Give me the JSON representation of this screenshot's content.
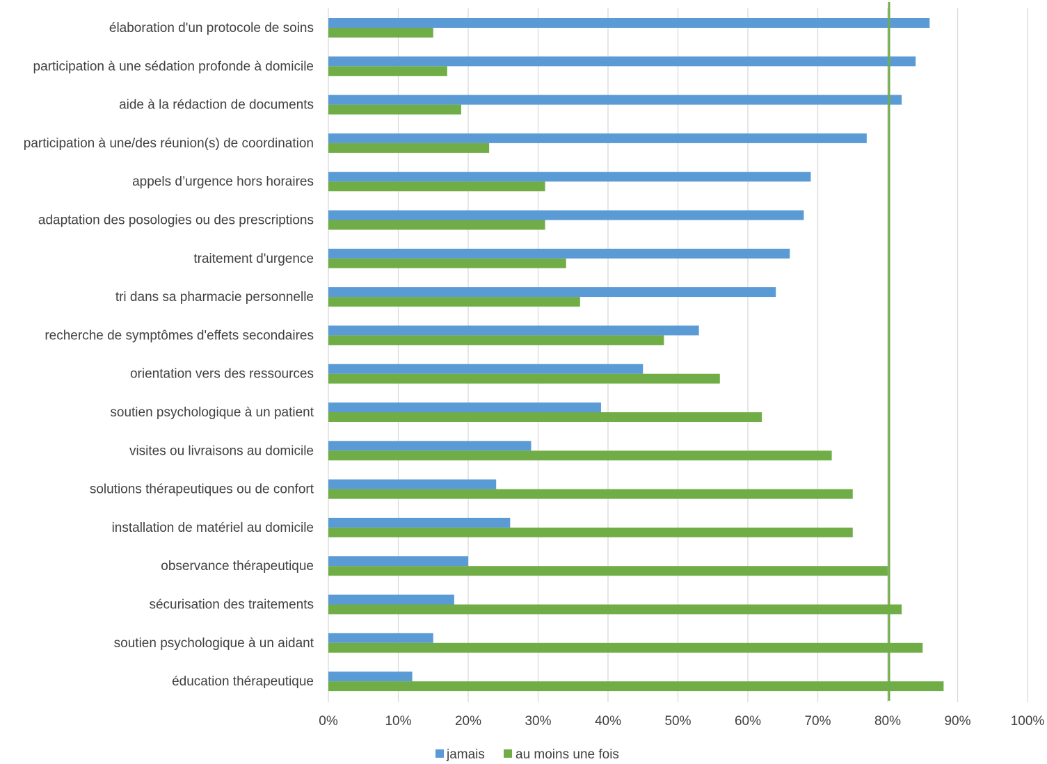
{
  "chart_data": {
    "type": "bar",
    "orientation": "horizontal",
    "categories": [
      "élaboration d'un protocole de soins",
      "participation à une sédation profonde à domicile",
      "aide à la rédaction de documents",
      "participation à une/des réunion(s) de coordination",
      "appels d’urgence hors horaires",
      "adaptation des posologies ou des prescriptions",
      "traitement d'urgence",
      "tri dans sa pharmacie personnelle",
      "recherche de symptômes d'effets secondaires",
      "orientation vers des ressources",
      "soutien psychologique à un patient",
      "visites ou livraisons au domicile",
      "solutions thérapeutiques ou de confort",
      "installation de matériel au domicile",
      "observance thérapeutique",
      "sécurisation des traitements",
      "soutien psychologique à un aidant",
      "éducation thérapeutique"
    ],
    "series": [
      {
        "name": "jamais",
        "color": "#5b9bd5",
        "values": [
          86,
          84,
          82,
          77,
          69,
          68,
          66,
          64,
          53,
          45,
          39,
          29,
          24,
          26,
          20,
          18,
          15,
          12
        ]
      },
      {
        "name": "au moins une fois",
        "color": "#70ad47",
        "values": [
          15,
          17,
          19,
          23,
          31,
          31,
          34,
          36,
          48,
          56,
          62,
          72,
          75,
          75,
          80,
          82,
          85,
          88
        ]
      }
    ],
    "xticks": [
      "0%",
      "10%",
      "20%",
      "30%",
      "40%",
      "50%",
      "60%",
      "70%",
      "80%",
      "90%",
      "100%"
    ],
    "xlim": [
      0,
      100
    ],
    "unit": "%",
    "reference_line": {
      "value": 80,
      "color": "#70ad47"
    },
    "grid": true,
    "gridline_color": "#d9d9d9",
    "legend_position": "bottom",
    "title": "",
    "xlabel": "",
    "ylabel": ""
  }
}
